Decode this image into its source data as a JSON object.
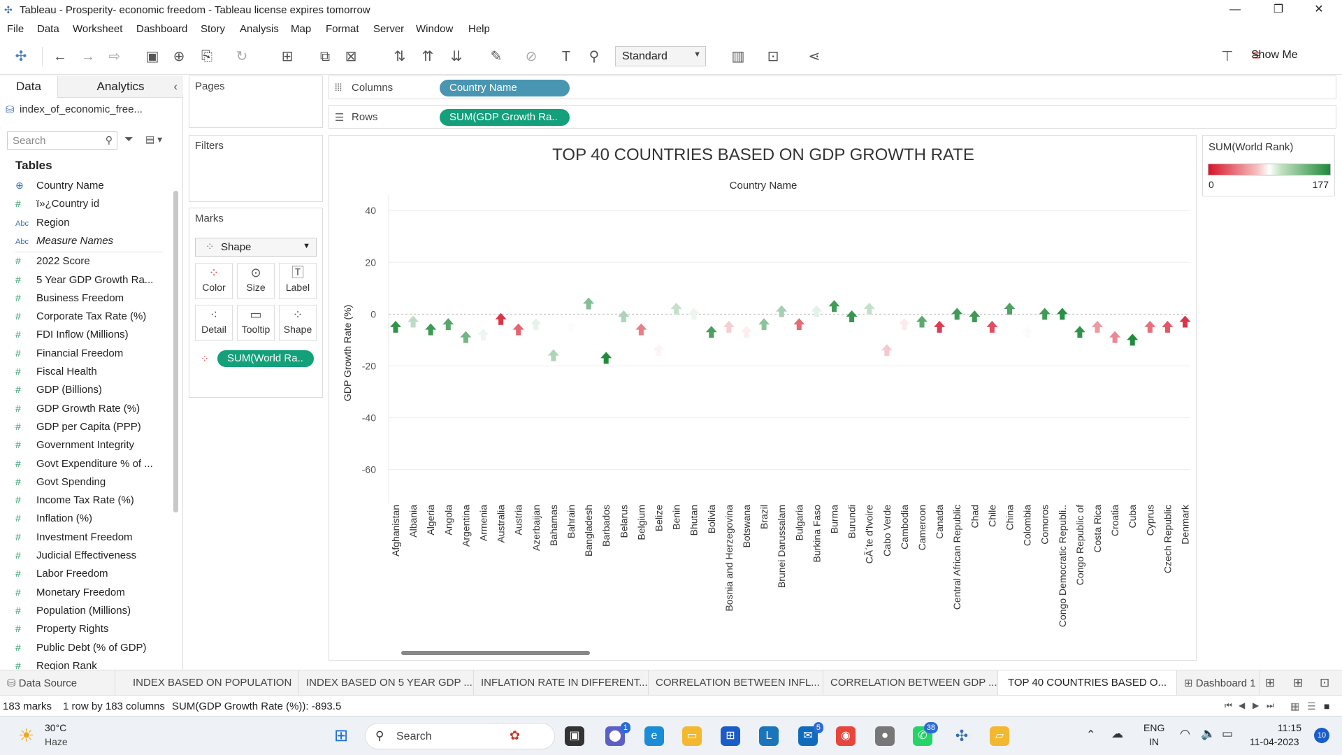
{
  "window": {
    "title": "Tableau - Prosperity- economic freedom - Tableau license expires tomorrow"
  },
  "menu": [
    "File",
    "Data",
    "Worksheet",
    "Dashboard",
    "Story",
    "Analysis",
    "Map",
    "Format",
    "Server",
    "Window",
    "Help"
  ],
  "toolbar": {
    "fit": "Standard",
    "show_me": "Show Me"
  },
  "datapane": {
    "tab_data": "Data",
    "tab_analytics": "Analytics",
    "datasource": "index_of_economic_free...",
    "search_placeholder": "Search",
    "tables_header": "Tables",
    "fields": [
      {
        "name": "Country Name",
        "icon": "globe-icon"
      },
      {
        "name": "ï»¿Country id",
        "icon": "hash-icon"
      },
      {
        "name": "Region",
        "icon": "abc-icon"
      },
      {
        "name": "Measure Names",
        "icon": "abc-icon"
      },
      {
        "name": "2022 Score",
        "icon": "hash-icon"
      },
      {
        "name": "5 Year GDP Growth Ra...",
        "icon": "hash-icon"
      },
      {
        "name": "Business Freedom",
        "icon": "hash-icon"
      },
      {
        "name": "Corporate Tax Rate (%)",
        "icon": "hash-icon"
      },
      {
        "name": "FDI Inflow (Millions)",
        "icon": "hash-icon"
      },
      {
        "name": "Financial Freedom",
        "icon": "hash-icon"
      },
      {
        "name": "Fiscal Health",
        "icon": "hash-icon"
      },
      {
        "name": "GDP (Billions)",
        "icon": "hash-icon"
      },
      {
        "name": "GDP Growth Rate (%)",
        "icon": "hash-icon"
      },
      {
        "name": "GDP per Capita (PPP)",
        "icon": "hash-icon"
      },
      {
        "name": "Government Integrity",
        "icon": "hash-icon"
      },
      {
        "name": "Govt Expenditure % of ...",
        "icon": "hash-icon"
      },
      {
        "name": "Govt Spending",
        "icon": "hash-icon"
      },
      {
        "name": "Income Tax Rate (%)",
        "icon": "hash-icon"
      },
      {
        "name": "Inflation (%)",
        "icon": "hash-icon"
      },
      {
        "name": "Investment Freedom",
        "icon": "hash-icon"
      },
      {
        "name": "Judicial Effectiveness",
        "icon": "hash-icon"
      },
      {
        "name": "Labor Freedom",
        "icon": "hash-icon"
      },
      {
        "name": "Monetary Freedom",
        "icon": "hash-icon"
      },
      {
        "name": "Population (Millions)",
        "icon": "hash-icon"
      },
      {
        "name": "Property Rights",
        "icon": "hash-icon"
      },
      {
        "name": "Public Debt (% of GDP)",
        "icon": "hash-icon"
      },
      {
        "name": "Region Rank",
        "icon": "hash-icon"
      }
    ]
  },
  "cards": {
    "pages": "Pages",
    "filters": "Filters",
    "marks": "Marks",
    "mark_type": "Shape",
    "mark_buttons": [
      "Color",
      "Size",
      "Label",
      "Detail",
      "Tooltip",
      "Shape"
    ],
    "color_pill": "SUM(World Ra.."
  },
  "shelves": {
    "columns_label": "Columns",
    "columns_pill": "Country Name",
    "rows_label": "Rows",
    "rows_pill": "SUM(GDP Growth Ra.."
  },
  "legend": {
    "title": "SUM(World Rank)",
    "min": "0",
    "max": "177"
  },
  "chart_data": {
    "type": "scatter",
    "title": "TOP 40 COUNTRIES BASED ON GDP GROWTH RATE",
    "xlabel": "Country Name",
    "ylabel": "GDP Growth Rate (%)",
    "ylim": [
      -72,
      46
    ],
    "yticks": [
      40,
      20,
      0,
      -20,
      -40,
      -60
    ],
    "categories": [
      "Afghanistan",
      "Albania",
      "Algeria",
      "Angola",
      "Argentina",
      "Armenia",
      "Australia",
      "Austria",
      "Azerbaijan",
      "Bahamas",
      "Bahrain",
      "Bangladesh",
      "Barbados",
      "Belarus",
      "Belgium",
      "Belize",
      "Benin",
      "Bhutan",
      "Bolivia",
      "Bosnia and Herzegovina",
      "Botswana",
      "Brazil",
      "Brunei Darussalam",
      "Bulgaria",
      "Burkina Faso",
      "Burma",
      "Burundi",
      "CÃ´te d'Ivoire",
      "Cabo Verde",
      "Cambodia",
      "Cameroon",
      "Canada",
      "Central African Republic",
      "Chad",
      "Chile",
      "China",
      "Colombia",
      "Comoros",
      "Congo Democratic Republi..",
      "Congo Republic of",
      "Costa Rica",
      "Croatia",
      "Cuba",
      "Cyprus",
      "Czech Republic",
      "Denmark"
    ],
    "values": [
      -5,
      -3,
      -6,
      -4,
      -9,
      -8,
      -2,
      -6,
      -4,
      -16,
      -5,
      4,
      -17,
      -1,
      -6,
      -14,
      2,
      0,
      -7,
      -5,
      -7,
      -4,
      1,
      -4,
      1,
      3,
      -1,
      2,
      -14,
      -4,
      -3,
      -5,
      0,
      -1,
      -5,
      2,
      -7,
      0,
      0,
      -7,
      -5,
      -9,
      -10,
      -5,
      -5,
      -3
    ],
    "world_rank": [
      170,
      115,
      165,
      155,
      144,
      95,
      12,
      30,
      98,
      120,
      90,
      137,
      176,
      121,
      40,
      84,
      112,
      96,
      160,
      70,
      82,
      133,
      124,
      32,
      99,
      163,
      167,
      112,
      68,
      81,
      153,
      15,
      164,
      165,
      22,
      158,
      91,
      164,
      173,
      170,
      50,
      44,
      176,
      35,
      25,
      12
    ],
    "color_scale": {
      "low": "#d6142a",
      "mid": "#ffffff",
      "high": "#1e8a3a"
    }
  },
  "sheet_tabs": [
    "Data Source",
    "INDEX BASED ON POPULATION",
    "INDEX BASED ON 5 YEAR GDP ...",
    "INFLATION RATE IN DIFFERENT...",
    "CORRELATION BETWEEN INFL...",
    "CORRELATION BETWEEN GDP ...",
    "TOP 40 COUNTRIES BASED O...",
    "Dashboard 1"
  ],
  "status": {
    "marks": "183 marks",
    "dims": "1 row by 183 columns",
    "sum": "SUM(GDP Growth Rate (%)): -893.5"
  },
  "taskbar": {
    "weather_temp": "30°C",
    "weather_desc": "Haze",
    "search": "Search",
    "lang1": "ENG",
    "lang2": "IN",
    "time": "11:15",
    "date": "11-04-2023",
    "notif": "10",
    "badge_teams": "1",
    "badge_mail": "5",
    "badge_whatsapp": "38"
  }
}
